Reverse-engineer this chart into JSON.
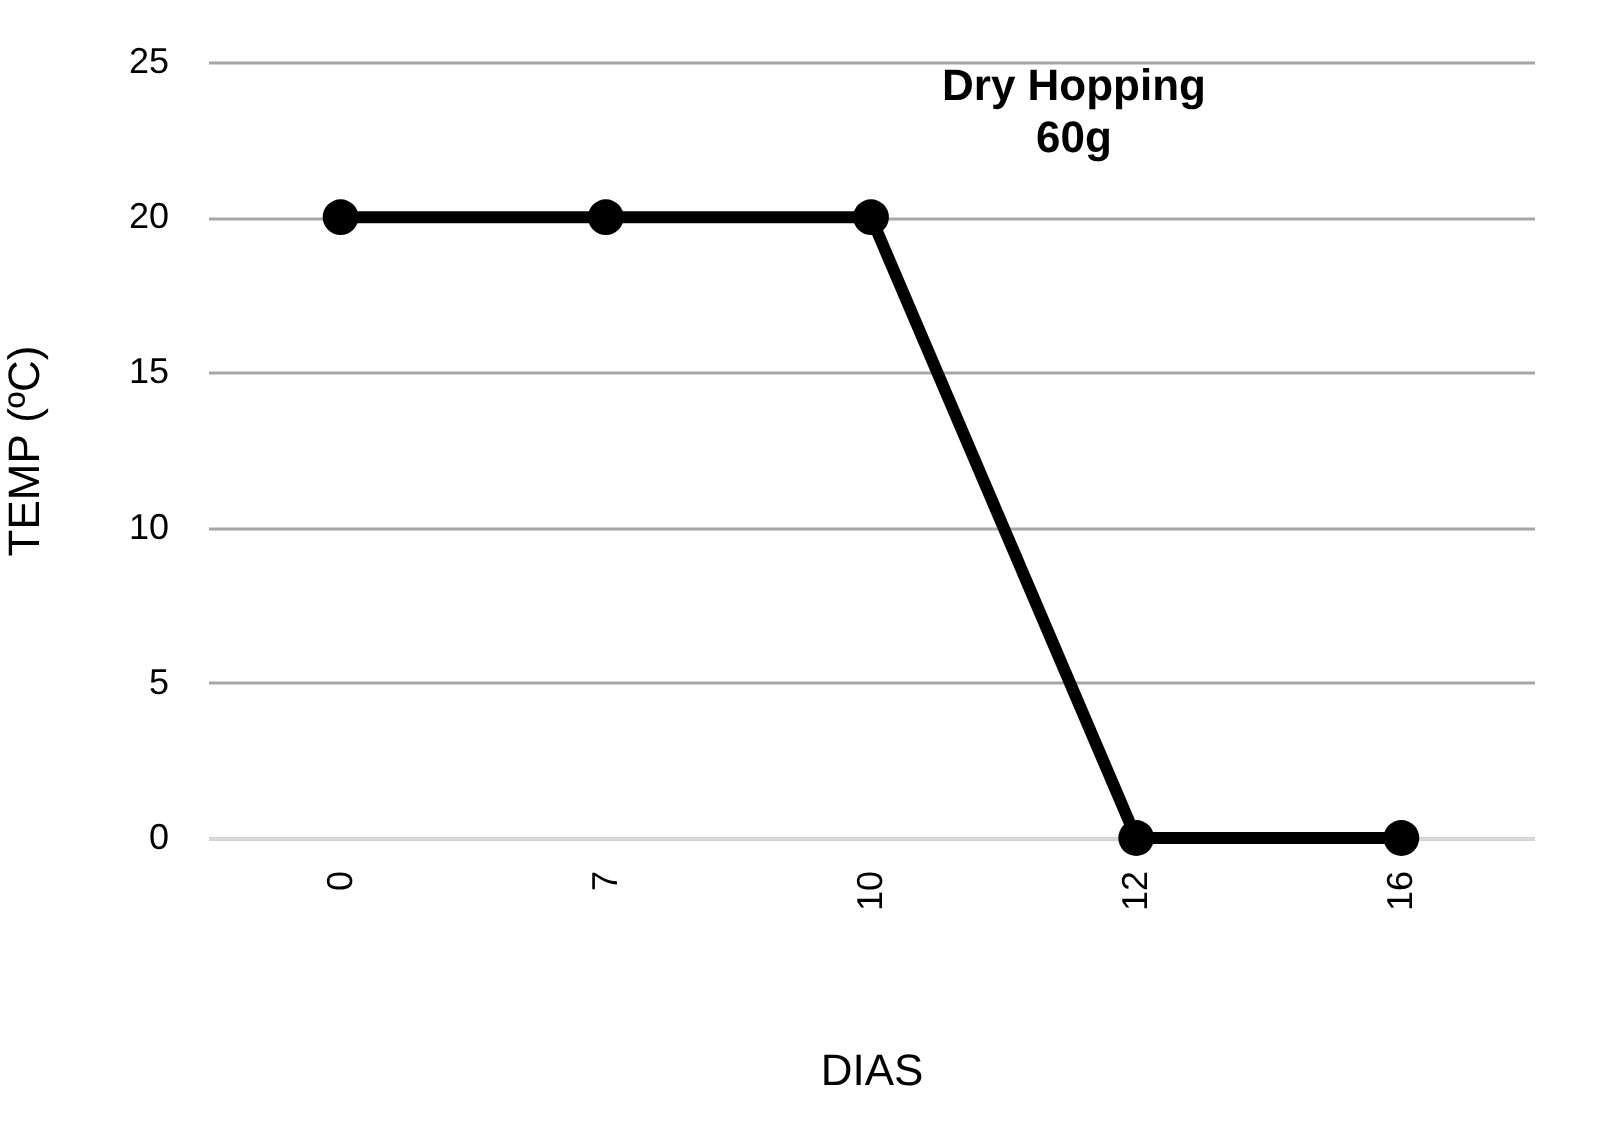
{
  "chart_data": {
    "type": "line",
    "xlabel": "DIAS",
    "ylabel": "TEMP (ºC)",
    "categories": [
      "0",
      "7",
      "10",
      "12",
      "16"
    ],
    "series": [
      {
        "color": "#000000",
        "values": [
          20,
          20,
          20,
          0,
          0
        ]
      }
    ],
    "ylim": [
      0,
      25
    ],
    "yticks": [
      0,
      5,
      10,
      15,
      20,
      25
    ],
    "grid": "y",
    "marker": "circle",
    "line_style": "solid",
    "annotations": [
      "Dry Hopping 60g"
    ]
  }
}
